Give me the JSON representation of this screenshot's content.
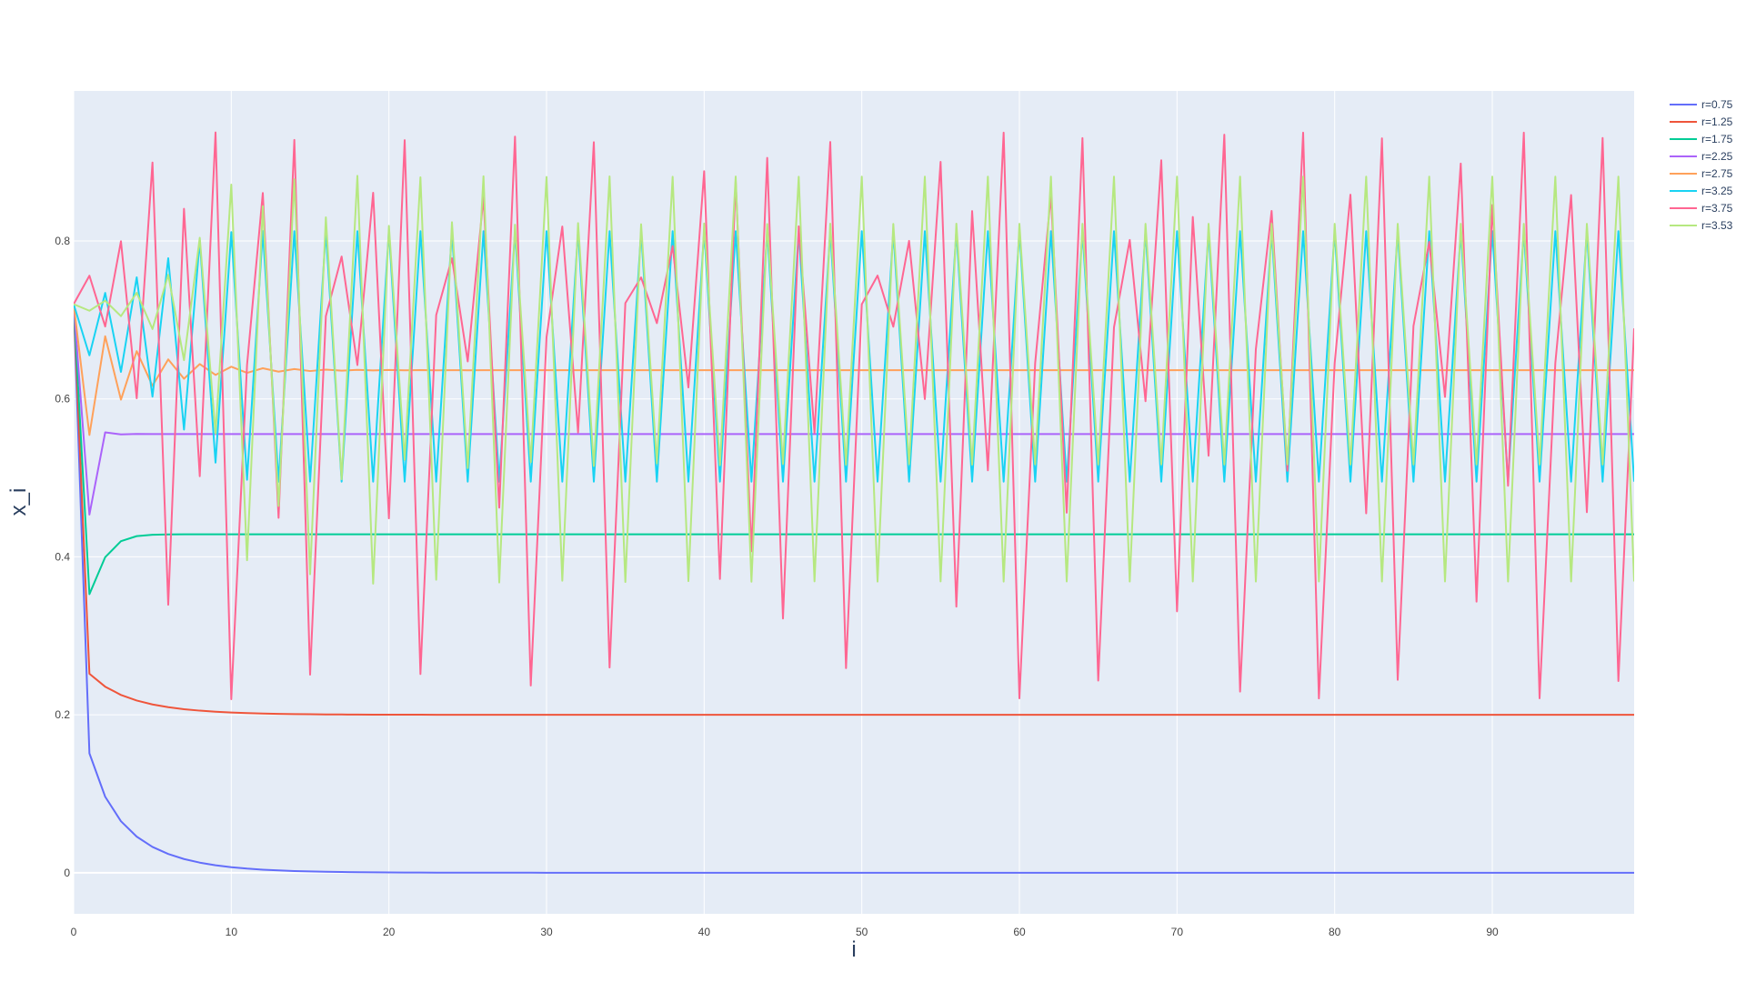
{
  "chart_data": {
    "type": "line",
    "title": "",
    "xlabel": "i",
    "ylabel": "x_i",
    "xlim": [
      0,
      99
    ],
    "ylim": [
      -0.052,
      0.99
    ],
    "grid": true,
    "legend_position": "top-right",
    "plot_bgcolor": "#e5ecf6",
    "x_ticks": [
      0,
      10,
      20,
      30,
      40,
      50,
      60,
      70,
      80,
      90
    ],
    "x_tick_labels": [
      "0",
      "10",
      "20",
      "30",
      "40",
      "50",
      "60",
      "70",
      "80",
      "90"
    ],
    "y_ticks": [
      0,
      0.2,
      0.4,
      0.6,
      0.8
    ],
    "y_tick_labels": [
      "0",
      "0.2",
      "0.4",
      "0.6",
      "0.8"
    ],
    "x0": 0.72,
    "n_points": 100,
    "series": [
      {
        "name": "r=0.75",
        "r": 0.75,
        "color": "#636efa"
      },
      {
        "name": "r=1.25",
        "r": 1.25,
        "color": "#ef553b"
      },
      {
        "name": "r=1.75",
        "r": 1.75,
        "color": "#00cc96"
      },
      {
        "name": "r=2.25",
        "r": 2.25,
        "color": "#ab63fa"
      },
      {
        "name": "r=2.75",
        "r": 2.75,
        "color": "#ffa15a"
      },
      {
        "name": "r=3.25",
        "r": 3.25,
        "color": "#19d3f3"
      },
      {
        "name": "r=3.75",
        "r": 3.75,
        "color": "#ff6692"
      },
      {
        "name": "r=3.53",
        "r": 3.53,
        "color": "#b6e880"
      }
    ]
  }
}
